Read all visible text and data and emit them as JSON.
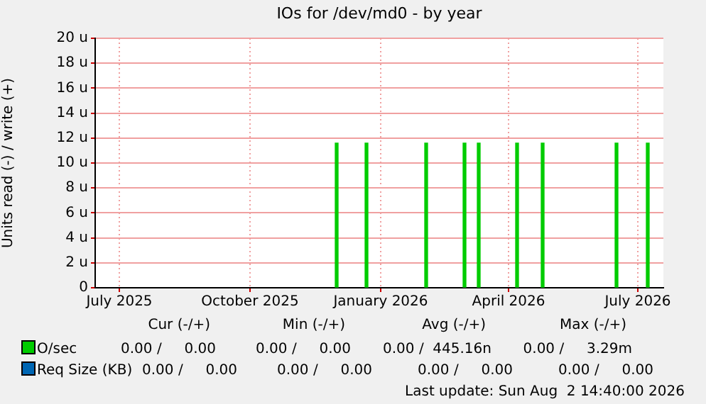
{
  "chart_data": {
    "type": "bar",
    "title": "IOs for /dev/md0 - by year",
    "ylabel": "Units read (-) / write (+)",
    "x": [
      "2025-12-16",
      "2026-01-06",
      "2026-02-17",
      "2026-03-16",
      "2026-03-26",
      "2026-04-22",
      "2026-05-10",
      "2026-07-01",
      "2026-07-23"
    ],
    "series": [
      {
        "name": "O/sec",
        "color": "#00cc00",
        "values": [
          11.6,
          11.6,
          11.6,
          11.6,
          11.6,
          11.6,
          11.6,
          11.6,
          11.6
        ]
      },
      {
        "name": "Req Size (KB)",
        "color": "#0066b3",
        "values": [
          null,
          null,
          null,
          null,
          null,
          null,
          null,
          null,
          null
        ]
      }
    ],
    "xlim": [
      "2025-06-28",
      "2026-08-02"
    ],
    "xticks": [
      {
        "value": "2025-07-15",
        "label": "July 2025"
      },
      {
        "value": "2025-10-15",
        "label": "October 2025"
      },
      {
        "value": "2026-01-15",
        "label": "January 2026"
      },
      {
        "value": "2026-04-15",
        "label": "April 2026"
      },
      {
        "value": "2026-07-15",
        "label": "July 2026"
      }
    ],
    "ylim": [
      0,
      20
    ],
    "yticks": [
      0,
      {
        "value": 2,
        "label": "2 u"
      },
      {
        "value": 4,
        "label": "4 u"
      },
      {
        "value": 6,
        "label": "6 u"
      },
      {
        "value": 8,
        "label": "8 u"
      },
      {
        "value": 10,
        "label": "10 u"
      },
      {
        "value": 12,
        "label": "12 u"
      },
      {
        "value": 14,
        "label": "14 u"
      },
      {
        "value": 16,
        "label": "16 u"
      },
      {
        "value": 18,
        "label": "18 u"
      },
      {
        "value": 20,
        "label": "20 u"
      }
    ],
    "grid": true,
    "legend": "bottom",
    "annotations": [
      "Cur (-/+)",
      "Min (-/+)",
      "Avg (-/+)",
      "Max (-/+)",
      "0.00 /     0.00",
      "0.00 /     0.00",
      "0.00 /  445.16n",
      "0.00 /     3.29m",
      "0.00 /     0.00",
      "0.00 /     0.00",
      "0.00 /     0.00",
      "0.00 /     0.00",
      "Last update: Sun Aug  2 14:40:00 2026"
    ]
  }
}
